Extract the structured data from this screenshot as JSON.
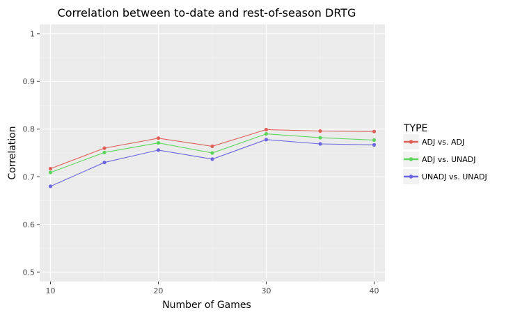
{
  "chart_data": {
    "type": "line",
    "title": "Correlation between to-date and rest-of-season DRTG",
    "xlabel": "Number of Games",
    "ylabel": "Correlation",
    "x": [
      10,
      15,
      20,
      25,
      30,
      35,
      40
    ],
    "xticks": [
      "10",
      "20",
      "30",
      "40"
    ],
    "yticks": [
      "0.5",
      "0.6",
      "0.7",
      "0.8",
      "0.9",
      "1"
    ],
    "xlim": [
      9,
      41
    ],
    "ylim": [
      0.48,
      1.02
    ],
    "grid": true,
    "legend": {
      "title": "TYPE",
      "placement": "right"
    },
    "series": [
      {
        "name": "ADJ vs. ADJ",
        "color": "#e06058",
        "values": [
          0.717,
          0.76,
          0.781,
          0.764,
          0.799,
          0.796,
          0.795
        ]
      },
      {
        "name": "ADJ vs. UNADJ",
        "color": "#5cd65a",
        "values": [
          0.709,
          0.751,
          0.771,
          0.75,
          0.79,
          0.782,
          0.777
        ]
      },
      {
        "name": "UNADJ vs. UNADJ",
        "color": "#6b64e0",
        "values": [
          0.68,
          0.73,
          0.756,
          0.737,
          0.778,
          0.769,
          0.767
        ]
      }
    ]
  }
}
